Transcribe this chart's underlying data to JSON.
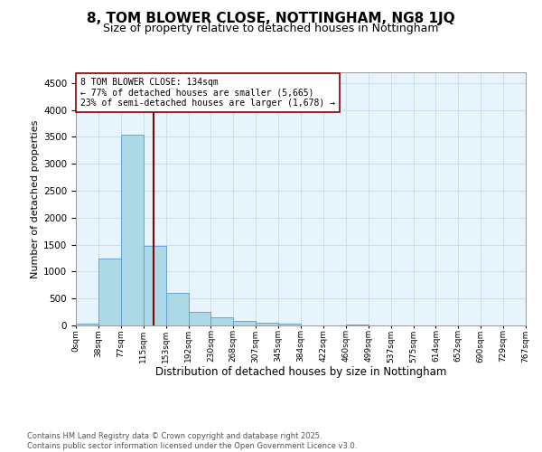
{
  "title": "8, TOM BLOWER CLOSE, NOTTINGHAM, NG8 1JQ",
  "subtitle": "Size of property relative to detached houses in Nottingham",
  "xlabel": "Distribution of detached houses by size in Nottingham",
  "ylabel": "Number of detached properties",
  "bar_values": [
    30,
    1250,
    3550,
    1480,
    600,
    260,
    150,
    80,
    50,
    30,
    0,
    0,
    25,
    0,
    0,
    0,
    0,
    0,
    0,
    0
  ],
  "bin_labels": [
    "0sqm",
    "38sqm",
    "77sqm",
    "115sqm",
    "153sqm",
    "192sqm",
    "230sqm",
    "268sqm",
    "307sqm",
    "345sqm",
    "384sqm",
    "422sqm",
    "460sqm",
    "499sqm",
    "537sqm",
    "575sqm",
    "614sqm",
    "652sqm",
    "690sqm",
    "729sqm",
    "767sqm"
  ],
  "bar_color": "#add8e6",
  "bar_edge_color": "#5b9bd5",
  "grid_color": "#c8dff0",
  "background_color": "#e8f4fb",
  "vline_x": 3.45,
  "vline_color": "#8b0000",
  "annotation_text": "8 TOM BLOWER CLOSE: 134sqm\n← 77% of detached houses are smaller (5,665)\n23% of semi-detached houses are larger (1,678) →",
  "annotation_box_color": "#ffffff",
  "annotation_box_edge": "#8b0000",
  "ylim": [
    0,
    4700
  ],
  "yticks": [
    0,
    500,
    1000,
    1500,
    2000,
    2500,
    3000,
    3500,
    4000,
    4500
  ],
  "footer_line1": "Contains HM Land Registry data © Crown copyright and database right 2025.",
  "footer_line2": "Contains public sector information licensed under the Open Government Licence v3.0.",
  "title_fontsize": 11,
  "subtitle_fontsize": 9
}
